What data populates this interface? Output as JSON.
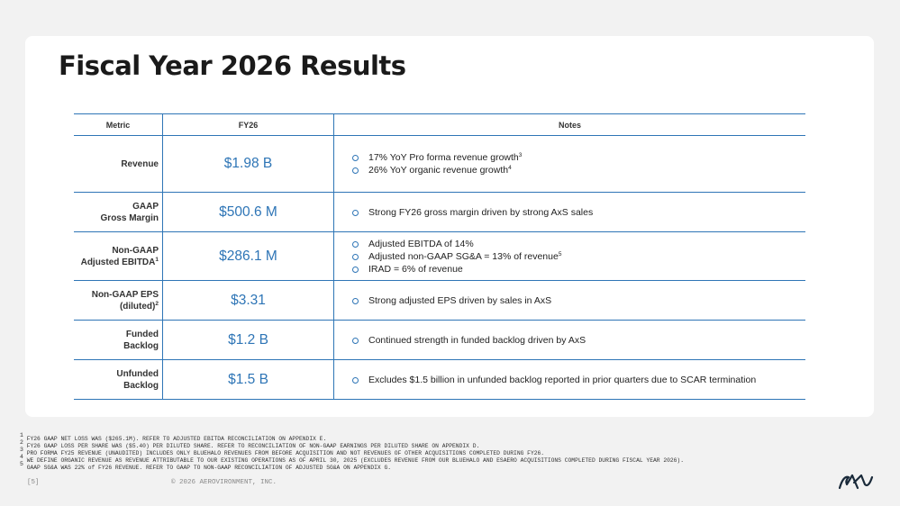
{
  "header": {
    "title": "Fiscal Year 2026 Results"
  },
  "table": {
    "columns": [
      "Metric",
      "FY26",
      "Notes"
    ],
    "rows": [
      {
        "metric": [
          {
            "text": "Revenue"
          }
        ],
        "value": "$1.98 B",
        "notes": [
          {
            "text": "17% YoY Pro forma revenue growth",
            "sup": "3"
          },
          {
            "text": "26% YoY organic revenue growth",
            "sup": "4"
          }
        ]
      },
      {
        "metric": [
          {
            "text": "GAAP"
          },
          {
            "text": "Gross Margin"
          }
        ],
        "value": "$500.6 M",
        "notes": [
          {
            "text": "Strong FY26 gross margin driven by strong AxS sales"
          }
        ]
      },
      {
        "metric": [
          {
            "text": "Non-GAAP"
          },
          {
            "text": "Adjusted EBITDA",
            "sup": "1"
          }
        ],
        "value": "$286.1 M",
        "notes": [
          {
            "text": "Adjusted EBITDA of 14%"
          },
          {
            "text": "Adjusted non-GAAP SG&A = 13% of revenue",
            "sup": "5"
          },
          {
            "text": "IRAD = 6% of revenue"
          }
        ]
      },
      {
        "metric": [
          {
            "text": "Non-GAAP EPS"
          },
          {
            "text": "(diluted)",
            "sup": "2"
          }
        ],
        "value": "$3.31",
        "notes": [
          {
            "text": "Strong adjusted EPS driven by sales in AxS"
          }
        ]
      },
      {
        "metric": [
          {
            "text": "Funded"
          },
          {
            "text": "Backlog"
          }
        ],
        "value": "$1.2 B",
        "notes": [
          {
            "text": "Continued strength in funded backlog driven by AxS"
          }
        ]
      },
      {
        "metric": [
          {
            "text": "Unfunded"
          },
          {
            "text": "Backlog"
          }
        ],
        "value": "$1.5 B",
        "notes": [
          {
            "text": "Excludes $1.5 billion in unfunded backlog reported in prior quarters due to SCAR termination"
          }
        ]
      }
    ]
  },
  "footnotes": [
    {
      "number": "1",
      "text": "FY26 GAAP NET LOSS WAS ($265.1M). REFER TO ADJUSTED EBITDA RECONCILIATION ON APPENDIX E."
    },
    {
      "number": "2",
      "text": "FY26 GAAP LOSS PER SHARE WAS ($5.40) PER DILUTED SHARE.  REFER TO RECONCILIATION OF NON-GAAP EARNINGS PER DILUTED SHARE ON APPENDIX D."
    },
    {
      "number": "3",
      "text": "PRO FORMA FY25 REVENUE (UNAUDITED) INCLUDES ONLY BLUEHALO REVENUES FROM BEFORE ACQUISITION AND NOT REVENUES OF OTHER ACQUISITIONS COMPLETED DURING FY26."
    },
    {
      "number": "4",
      "text": "WE DEFINE ORGANIC REVENUE AS REVENUE ATTRIBUTABLE TO OUR EXISTING OPERATIONS AS OF APRIL 30, 2025 (EXCLUDES REVENUE FROM OUR BLUEHALO AND ESAERO ACQUISITIONS COMPLETED DURING FISCAL YEAR 2026)."
    },
    {
      "number": "5",
      "text": "GAAP SG&A WAS 22% of FY26 REVENUE. REFER TO GAAP TO NON-GAAP RECONCILIATION OF ADJUSTED SG&A ON APPENDIX G."
    }
  ],
  "footer": {
    "page": "[5]",
    "copyright": "© 2026 AEROVIRONMENT, INC."
  }
}
